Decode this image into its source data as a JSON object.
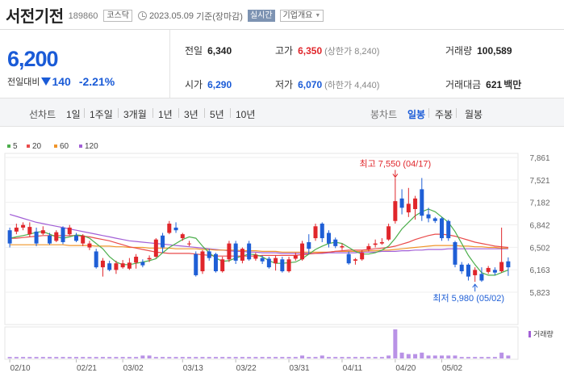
{
  "header": {
    "name": "서전기전",
    "code": "189860",
    "market": "코스닥",
    "date": "2023.05.09",
    "basis": "기준(장마감)",
    "realtime": "실시간",
    "overview": "기업개요"
  },
  "price": {
    "current": "6,200",
    "change_label": "전일대비",
    "change": "140",
    "change_pct": "-2.21%",
    "prev_label": "전일",
    "prev": "6,340",
    "high_label": "고가",
    "high": "6,350",
    "upper_limit": "(상한가 8,240)",
    "volume_label": "거래량",
    "volume": "100,589",
    "open_label": "시가",
    "open": "6,290",
    "low_label": "저가",
    "low": "6,070",
    "lower_limit": "(하한가 4,440)",
    "amount_label": "거래대금",
    "amount": "621",
    "amount_unit": "백만"
  },
  "tabs": {
    "line_chart": "선차트",
    "periods": [
      "1일",
      "1주일",
      "3개월",
      "1년",
      "3년",
      "5년",
      "10년"
    ],
    "candle_chart": "봉차트",
    "candle_periods": [
      "일봉",
      "주봉",
      "월봉"
    ],
    "active_candle": "일봉"
  },
  "chart_data": {
    "type": "candlestick",
    "legend": [
      "5",
      "20",
      "60",
      "120"
    ],
    "ma_colors": {
      "5": "#4cae4c",
      "20": "#e94b4b",
      "60": "#f0952a",
      "120": "#a25fd6"
    },
    "up_color": "#e0262b",
    "down_color": "#1f5fd6",
    "yticks": [
      "7,861",
      "7,521",
      "7,182",
      "6,842",
      "6,502",
      "6,163",
      "5,823"
    ],
    "ylim": [
      5823,
      7861
    ],
    "xlabels": [
      "02/10",
      "02/21",
      "03/02",
      "03/13",
      "03/22",
      "03/31",
      "04/11",
      "04/20",
      "05/02"
    ],
    "high_annotation": "최고 7,550 (04/17)",
    "low_annotation": "최저 5,980 (05/02)",
    "volume_label": "거래량",
    "candles": [
      {
        "o": 6760,
        "c": 6560,
        "h": 6800,
        "l": 6500
      },
      {
        "o": 6740,
        "c": 6800,
        "h": 6860,
        "l": 6700
      },
      {
        "o": 6800,
        "c": 6840,
        "h": 6880,
        "l": 6760
      },
      {
        "o": 6700,
        "c": 6810,
        "h": 6880,
        "l": 6660
      },
      {
        "o": 6740,
        "c": 6560,
        "h": 6800,
        "l": 6520
      },
      {
        "o": 6710,
        "c": 6760,
        "h": 6820,
        "l": 6690
      },
      {
        "o": 6680,
        "c": 6560,
        "h": 6720,
        "l": 6540
      },
      {
        "o": 6600,
        "c": 6730,
        "h": 6760,
        "l": 6580
      },
      {
        "o": 6800,
        "c": 6580,
        "h": 6820,
        "l": 6550
      },
      {
        "o": 6700,
        "c": 6800,
        "h": 6840,
        "l": 6680
      },
      {
        "o": 6680,
        "c": 6600,
        "h": 6720,
        "l": 6580
      },
      {
        "o": 6560,
        "c": 6680,
        "h": 6700,
        "l": 6520
      },
      {
        "o": 6500,
        "c": 6560,
        "h": 6600,
        "l": 6460
      },
      {
        "o": 6440,
        "c": 6200,
        "h": 6480,
        "l": 6180
      },
      {
        "o": 6200,
        "c": 6300,
        "h": 6340,
        "l": 6060
      },
      {
        "o": 6260,
        "c": 6160,
        "h": 6300,
        "l": 6140
      },
      {
        "o": 6160,
        "c": 6260,
        "h": 6300,
        "l": 6100
      },
      {
        "o": 6200,
        "c": 6260,
        "h": 6310,
        "l": 6180
      },
      {
        "o": 6180,
        "c": 6270,
        "h": 6340,
        "l": 6160
      },
      {
        "o": 6270,
        "c": 6360,
        "h": 6400,
        "l": 6180
      },
      {
        "o": 6280,
        "c": 6230,
        "h": 6320,
        "l": 6200
      },
      {
        "o": 6320,
        "c": 6340,
        "h": 6380,
        "l": 6280
      },
      {
        "o": 6360,
        "c": 6620,
        "h": 6640,
        "l": 6340
      },
      {
        "o": 6680,
        "c": 6500,
        "h": 6720,
        "l": 6420
      },
      {
        "o": 6720,
        "c": 6860,
        "h": 6900,
        "l": 6700
      },
      {
        "o": 6800,
        "c": 6760,
        "h": 6880,
        "l": 6720
      },
      {
        "o": 6640,
        "c": 6700,
        "h": 6720,
        "l": 6600
      },
      {
        "o": 6560,
        "c": 6560,
        "h": 6600,
        "l": 6520
      },
      {
        "o": 6400,
        "c": 6080,
        "h": 6440,
        "l": 6060
      },
      {
        "o": 6140,
        "c": 6440,
        "h": 6460,
        "l": 6100
      },
      {
        "o": 6440,
        "c": 6340,
        "h": 6480,
        "l": 6300
      },
      {
        "o": 6400,
        "c": 6140,
        "h": 6420,
        "l": 6120
      },
      {
        "o": 6140,
        "c": 6320,
        "h": 6360,
        "l": 6120
      },
      {
        "o": 6320,
        "c": 6560,
        "h": 6600,
        "l": 6280
      },
      {
        "o": 6560,
        "c": 6300,
        "h": 6600,
        "l": 6250
      },
      {
        "o": 6300,
        "c": 6480,
        "h": 6500,
        "l": 6260
      },
      {
        "o": 6560,
        "c": 6320,
        "h": 6600,
        "l": 6300
      },
      {
        "o": 6330,
        "c": 6390,
        "h": 6420,
        "l": 6300
      },
      {
        "o": 6340,
        "c": 6290,
        "h": 6380,
        "l": 6250
      },
      {
        "o": 6330,
        "c": 6200,
        "h": 6360,
        "l": 6180
      },
      {
        "o": 6260,
        "c": 6340,
        "h": 6380,
        "l": 6150
      },
      {
        "o": 6320,
        "c": 6140,
        "h": 6360,
        "l": 6120
      },
      {
        "o": 6140,
        "c": 6320,
        "h": 6360,
        "l": 6120
      },
      {
        "o": 6330,
        "c": 6380,
        "h": 6420,
        "l": 6300
      },
      {
        "o": 6320,
        "c": 6560,
        "h": 6600,
        "l": 6300
      },
      {
        "o": 6580,
        "c": 6480,
        "h": 6700,
        "l": 6400
      },
      {
        "o": 6640,
        "c": 6820,
        "h": 6860,
        "l": 6600
      },
      {
        "o": 6860,
        "c": 6640,
        "h": 6880,
        "l": 6580
      },
      {
        "o": 6720,
        "c": 6560,
        "h": 6760,
        "l": 6500
      },
      {
        "o": 6620,
        "c": 6520,
        "h": 6650,
        "l": 6490
      },
      {
        "o": 6500,
        "c": 6520,
        "h": 6560,
        "l": 6460
      },
      {
        "o": 6400,
        "c": 6260,
        "h": 6440,
        "l": 6240
      },
      {
        "o": 6300,
        "c": 6320,
        "h": 6340,
        "l": 6240
      },
      {
        "o": 6320,
        "c": 6420,
        "h": 6460,
        "l": 6300
      },
      {
        "o": 6470,
        "c": 6520,
        "h": 6560,
        "l": 6440
      },
      {
        "o": 6540,
        "c": 6560,
        "h": 6620,
        "l": 6500
      },
      {
        "o": 6560,
        "c": 6580,
        "h": 6640,
        "l": 6540
      },
      {
        "o": 6620,
        "c": 6820,
        "h": 6860,
        "l": 6600
      },
      {
        "o": 6900,
        "c": 7200,
        "h": 7550,
        "l": 6860
      },
      {
        "o": 7240,
        "c": 7100,
        "h": 7380,
        "l": 7000
      },
      {
        "o": 7030,
        "c": 7160,
        "h": 7400,
        "l": 6960
      },
      {
        "o": 7080,
        "c": 7240,
        "h": 7280,
        "l": 6920
      },
      {
        "o": 7380,
        "c": 6980,
        "h": 7550,
        "l": 6900
      },
      {
        "o": 7000,
        "c": 6940,
        "h": 7100,
        "l": 6880
      },
      {
        "o": 6940,
        "c": 6900,
        "h": 6960,
        "l": 6870
      },
      {
        "o": 6940,
        "c": 6640,
        "h": 6960,
        "l": 6600
      },
      {
        "o": 6900,
        "c": 6640,
        "h": 6920,
        "l": 6600
      },
      {
        "o": 6580,
        "c": 6240,
        "h": 6600,
        "l": 6200
      },
      {
        "o": 6240,
        "c": 6140,
        "h": 6280,
        "l": 6100
      },
      {
        "o": 6240,
        "c": 6060,
        "h": 6260,
        "l": 6000
      },
      {
        "o": 6080,
        "c": 6160,
        "h": 6200,
        "l": 5980
      },
      {
        "o": 6100,
        "c": 6000,
        "h": 6200,
        "l": 5980
      },
      {
        "o": 6130,
        "c": 6190,
        "h": 6220,
        "l": 6100
      },
      {
        "o": 6160,
        "c": 6120,
        "h": 6200,
        "l": 6080
      },
      {
        "o": 6140,
        "c": 6280,
        "h": 6800,
        "l": 6120
      },
      {
        "o": 6290,
        "c": 6200,
        "h": 6350,
        "l": 6070
      }
    ],
    "ma5": [
      6640,
      6660,
      6680,
      6700,
      6730,
      6740,
      6700,
      6660,
      6640,
      6660,
      6690,
      6680,
      6640,
      6560,
      6480,
      6360,
      6280,
      6240,
      6240,
      6260,
      6280,
      6300,
      6330,
      6420,
      6500,
      6560,
      6620,
      6660,
      6640,
      6520,
      6420,
      6340,
      6290,
      6300,
      6340,
      6370,
      6400,
      6390,
      6360,
      6300,
      6260,
      6260,
      6270,
      6280,
      6330,
      6400,
      6470,
      6520,
      6560,
      6580,
      6560,
      6500,
      6440,
      6400,
      6400,
      6420,
      6460,
      6520,
      6640,
      6780,
      6880,
      6980,
      7040,
      7080,
      7040,
      6960,
      6880,
      6740,
      6560,
      6380,
      6240,
      6120,
      6080,
      6080,
      6120,
      6160
    ],
    "ma20": [
      6640,
      6640,
      6650,
      6660,
      6670,
      6680,
      6680,
      6680,
      6680,
      6680,
      6680,
      6670,
      6660,
      6640,
      6620,
      6600,
      6570,
      6540,
      6510,
      6490,
      6470,
      6450,
      6430,
      6420,
      6410,
      6410,
      6410,
      6410,
      6400,
      6390,
      6380,
      6370,
      6370,
      6370,
      6370,
      6370,
      6370,
      6370,
      6380,
      6380,
      6380,
      6380,
      6380,
      6380,
      6390,
      6400,
      6410,
      6420,
      6430,
      6440,
      6450,
      6460,
      6460,
      6460,
      6470,
      6480,
      6490,
      6500,
      6520,
      6550,
      6580,
      6620,
      6650,
      6680,
      6700,
      6700,
      6690,
      6670,
      6640,
      6610,
      6580,
      6560,
      6540,
      6520,
      6510,
      6500
    ],
    "ma60": [
      6540,
      6540,
      6540,
      6540,
      6540,
      6540,
      6540,
      6540,
      6540,
      6530,
      6530,
      6530,
      6530,
      6520,
      6520,
      6520,
      6510,
      6510,
      6500,
      6500,
      6500,
      6490,
      6490,
      6490,
      6490,
      6480,
      6480,
      6480,
      6480,
      6470,
      6470,
      6460,
      6460,
      6460,
      6460,
      6450,
      6450,
      6450,
      6440,
      6440,
      6440,
      6430,
      6430,
      6430,
      6430,
      6430,
      6430,
      6430,
      6430,
      6440,
      6440,
      6440,
      6440,
      6440,
      6450,
      6450,
      6460,
      6460,
      6470,
      6480,
      6490,
      6500,
      6510,
      6520,
      6530,
      6530,
      6530,
      6530,
      6520,
      6520,
      6510,
      6510,
      6500,
      6500,
      6490,
      6490
    ],
    "ma120": [
      7000,
      6970,
      6940,
      6910,
      6880,
      6860,
      6840,
      6820,
      6800,
      6780,
      6760,
      6740,
      6720,
      6700,
      6680,
      6660,
      6640,
      6620,
      6600,
      6590,
      6580,
      6570,
      6560,
      6550,
      6540,
      6530,
      6520,
      6510,
      6500,
      6490,
      6480,
      6470,
      6460,
      6450,
      6440,
      6440,
      6430,
      6430,
      6420,
      6420,
      6420,
      6410,
      6410,
      6410,
      6410,
      6410,
      6410,
      6410,
      6420,
      6420,
      6420,
      6420,
      6420,
      6430,
      6430,
      6430,
      6440,
      6440,
      6440,
      6450,
      6450,
      6460,
      6460,
      6470,
      6470,
      6470,
      6480,
      6480,
      6480,
      6480,
      6480,
      6480,
      6480,
      6480,
      6480,
      6480
    ],
    "volume": [
      1,
      1,
      1,
      1,
      1,
      1,
      1,
      1,
      1,
      1,
      1,
      1,
      1,
      1,
      1,
      1,
      1,
      1,
      1,
      1,
      2,
      2,
      1,
      1,
      1,
      1,
      1,
      1,
      1,
      1,
      1,
      1,
      1,
      1,
      1,
      1,
      1,
      1,
      1,
      1,
      1,
      1,
      1,
      1,
      2,
      1,
      1,
      2,
      1,
      1,
      1,
      1,
      1,
      1,
      1,
      1,
      1,
      2,
      20,
      4,
      3,
      3,
      4,
      2,
      2,
      2,
      2,
      2,
      1,
      1,
      1,
      1,
      1,
      1,
      4,
      2
    ]
  }
}
